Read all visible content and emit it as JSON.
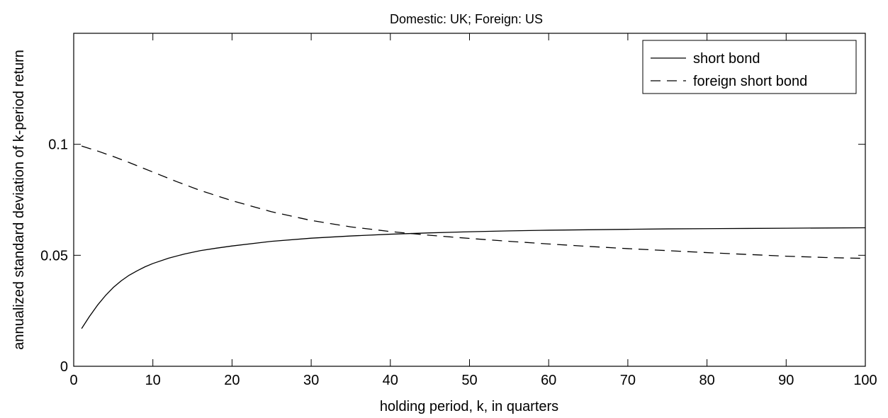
{
  "chart_data": {
    "type": "line",
    "title": "Domestic: UK;  Foreign: US",
    "xlabel": "holding period, k, in quarters",
    "ylabel": "annualized standard deviation of k-period return",
    "xlim": [
      0,
      100
    ],
    "ylim": [
      0,
      0.15
    ],
    "xticks": [
      0,
      10,
      20,
      30,
      40,
      50,
      60,
      70,
      80,
      90,
      100
    ],
    "xtick_labels": [
      "0",
      "10",
      "20",
      "30",
      "40",
      "50",
      "60",
      "70",
      "80",
      "90",
      "100"
    ],
    "yticks": [
      0,
      0.05,
      0.1
    ],
    "ytick_labels": [
      "0",
      "0.05",
      "0.1"
    ],
    "grid": false,
    "legend_position": "top-right",
    "series": [
      {
        "name": "short bond",
        "style": "solid",
        "color": "#000000",
        "x": [
          1,
          2,
          3,
          4,
          5,
          6,
          7,
          8,
          9,
          10,
          12,
          14,
          16,
          18,
          20,
          25,
          30,
          35,
          40,
          45,
          50,
          55,
          60,
          65,
          70,
          75,
          80,
          85,
          90,
          95,
          100
        ],
        "y": [
          0.017,
          0.0225,
          0.0275,
          0.0318,
          0.0355,
          0.0385,
          0.041,
          0.043,
          0.0448,
          0.0463,
          0.0487,
          0.0506,
          0.0521,
          0.0532,
          0.0542,
          0.0563,
          0.0577,
          0.0587,
          0.0595,
          0.0601,
          0.0606,
          0.061,
          0.0613,
          0.0615,
          0.0617,
          0.0619,
          0.062,
          0.0621,
          0.0622,
          0.0623,
          0.0624
        ]
      },
      {
        "name": "foreign short bond",
        "style": "dashed",
        "color": "#000000",
        "x": [
          1,
          3,
          5,
          7,
          10,
          13,
          16,
          20,
          25,
          30,
          35,
          40,
          45,
          50,
          55,
          60,
          65,
          70,
          75,
          80,
          85,
          90,
          95,
          100
        ],
        "y": [
          0.0992,
          0.097,
          0.0945,
          0.0918,
          0.0875,
          0.0832,
          0.0792,
          0.0746,
          0.0696,
          0.0657,
          0.0628,
          0.0607,
          0.059,
          0.0576,
          0.0563,
          0.0551,
          0.054,
          0.053,
          0.0521,
          0.0512,
          0.0504,
          0.0496,
          0.049,
          0.0486
        ]
      }
    ]
  }
}
